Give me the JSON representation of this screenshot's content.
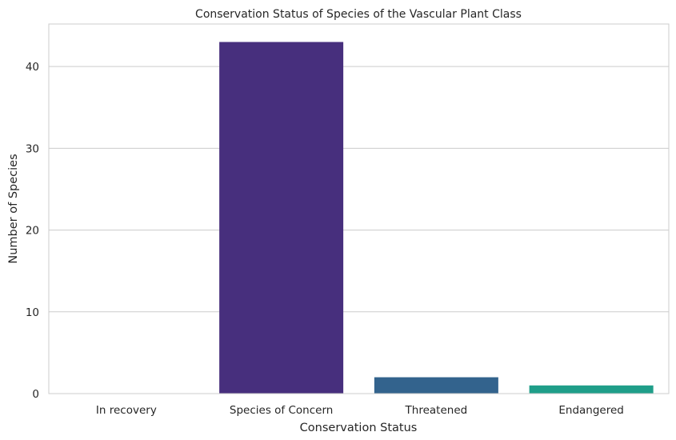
{
  "chart_data": {
    "type": "bar",
    "title": "Conservation Status of Species of the Vascular Plant Class",
    "xlabel": "Conservation Status",
    "ylabel": "Number of Species",
    "categories": [
      "In recovery",
      "Species of Concern",
      "Threatened",
      "Endangered"
    ],
    "values": [
      0,
      43,
      2,
      1
    ],
    "ylim": [
      0,
      45.2
    ],
    "yticks": [
      0,
      10,
      20,
      30,
      40
    ],
    "grid": "horizontal",
    "colors": [
      "#440154",
      "#472f7d",
      "#33638d",
      "#1f9e89"
    ]
  }
}
